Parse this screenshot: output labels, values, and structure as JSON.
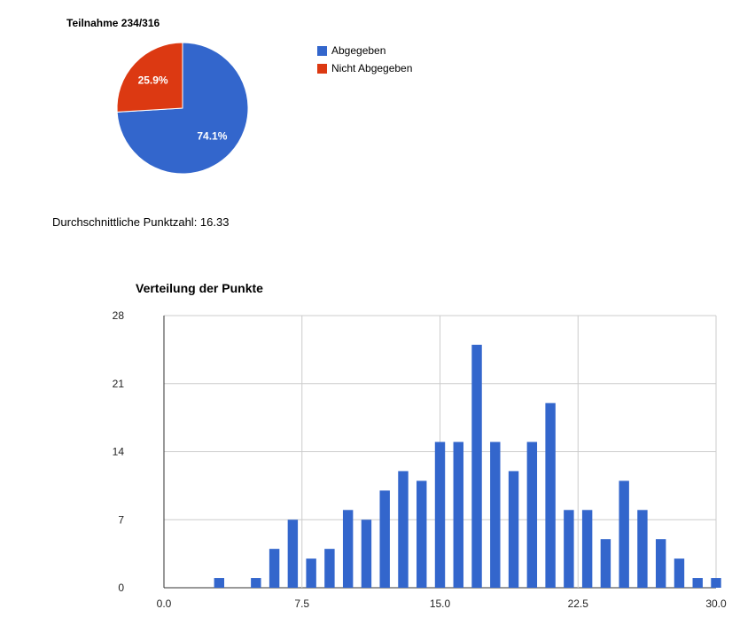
{
  "pie": {
    "title": "Teilnahme 234/316",
    "legend": [
      {
        "label": "Abgegeben",
        "color": "#3366cc"
      },
      {
        "label": "Nicht Abgegeben",
        "color": "#dc3912"
      }
    ]
  },
  "average_text": "Durchschnittliche Punktzahl: 16.33",
  "histogram": {
    "title": "Verteilung der Punkte"
  },
  "chart_data": [
    {
      "type": "pie",
      "title": "Teilnahme 234/316",
      "categories": [
        "Abgegeben",
        "Nicht Abgegeben"
      ],
      "values": [
        234,
        82
      ],
      "labels": [
        "74.1%",
        "25.9%"
      ],
      "colors": [
        "#3366cc",
        "#dc3912"
      ],
      "legend": "right"
    },
    {
      "type": "bar",
      "title": "Verteilung der Punkte",
      "x": [
        0,
        1,
        2,
        3,
        4,
        5,
        6,
        7,
        8,
        9,
        10,
        11,
        12,
        13,
        14,
        15,
        16,
        17,
        18,
        19,
        20,
        21,
        22,
        23,
        24,
        25,
        26,
        27,
        28,
        29
      ],
      "values": [
        0,
        0,
        1,
        0,
        1,
        4,
        7,
        3,
        4,
        8,
        7,
        10,
        12,
        11,
        15,
        15,
        25,
        15,
        12,
        15,
        19,
        8,
        8,
        5,
        11,
        8,
        5,
        3,
        1,
        1
      ],
      "xlim": [
        0,
        30
      ],
      "ylim": [
        0,
        28
      ],
      "x_ticks": [
        "0.0",
        "7.5",
        "15.0",
        "22.5",
        "30.0"
      ],
      "y_ticks": [
        "0",
        "7",
        "14",
        "21",
        "28"
      ],
      "color": "#3366cc",
      "grid": true
    }
  ]
}
